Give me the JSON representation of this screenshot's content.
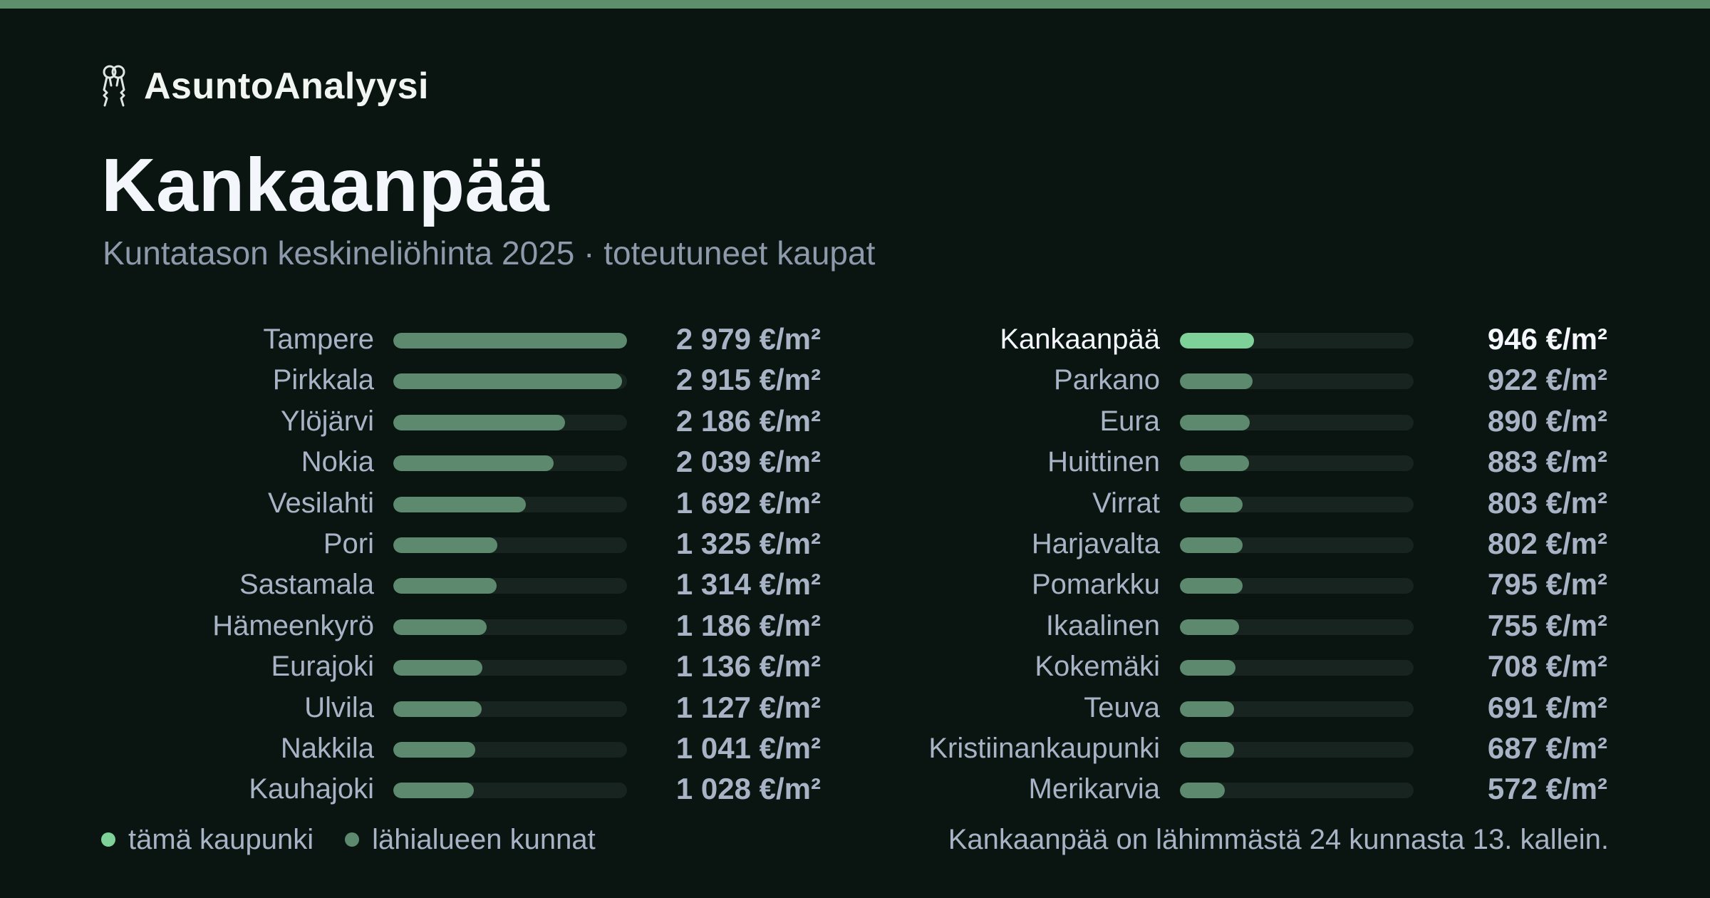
{
  "brand": {
    "name": "AsuntoAnalyysi",
    "icon": "keys-icon"
  },
  "colors": {
    "accent_bar": "#5d8f6a",
    "highlight": "#7fd19a",
    "bar": "#5d8a6e",
    "track": "#17241f"
  },
  "chart_data": {
    "type": "bar",
    "orientation": "horizontal",
    "title": "Kankaanpää",
    "subtitle": "Kuntatason keskineliöhinta 2025 · toteutuneet kaupat",
    "unit": "€/m²",
    "xlim": [
      0,
      2979
    ],
    "highlight": "Kankaanpää",
    "columns": [
      [
        {
          "name": "Tampere",
          "value": 2979,
          "label": "2 979 €/m²"
        },
        {
          "name": "Pirkkala",
          "value": 2915,
          "label": "2 915 €/m²"
        },
        {
          "name": "Ylöjärvi",
          "value": 2186,
          "label": "2 186 €/m²"
        },
        {
          "name": "Nokia",
          "value": 2039,
          "label": "2 039 €/m²"
        },
        {
          "name": "Vesilahti",
          "value": 1692,
          "label": "1 692 €/m²"
        },
        {
          "name": "Pori",
          "value": 1325,
          "label": "1 325 €/m²"
        },
        {
          "name": "Sastamala",
          "value": 1314,
          "label": "1 314 €/m²"
        },
        {
          "name": "Hämeenkyrö",
          "value": 1186,
          "label": "1 186 €/m²"
        },
        {
          "name": "Eurajoki",
          "value": 1136,
          "label": "1 136 €/m²"
        },
        {
          "name": "Ulvila",
          "value": 1127,
          "label": "1 127 €/m²"
        },
        {
          "name": "Nakkila",
          "value": 1041,
          "label": "1 041 €/m²"
        },
        {
          "name": "Kauhajoki",
          "value": 1028,
          "label": "1 028 €/m²"
        }
      ],
      [
        {
          "name": "Kankaanpää",
          "value": 946,
          "label": "946 €/m²"
        },
        {
          "name": "Parkano",
          "value": 922,
          "label": "922 €/m²"
        },
        {
          "name": "Eura",
          "value": 890,
          "label": "890 €/m²"
        },
        {
          "name": "Huittinen",
          "value": 883,
          "label": "883 €/m²"
        },
        {
          "name": "Virrat",
          "value": 803,
          "label": "803 €/m²"
        },
        {
          "name": "Harjavalta",
          "value": 802,
          "label": "802 €/m²"
        },
        {
          "name": "Pomarkku",
          "value": 795,
          "label": "795 €/m²"
        },
        {
          "name": "Ikaalinen",
          "value": 755,
          "label": "755 €/m²"
        },
        {
          "name": "Kokemäki",
          "value": 708,
          "label": "708 €/m²"
        },
        {
          "name": "Teuva",
          "value": 691,
          "label": "691 €/m²"
        },
        {
          "name": "Kristiinankaupunki",
          "value": 687,
          "label": "687 €/m²"
        },
        {
          "name": "Merikarvia",
          "value": 572,
          "label": "572 €/m²"
        }
      ]
    ],
    "legend": [
      {
        "label": "tämä kaupunki",
        "color": "#7fd19a"
      },
      {
        "label": "lähialueen kunnat",
        "color": "#5d8a6e"
      }
    ],
    "annotation": "Kankaanpää on lähimmästä 24 kunnasta 13. kallein."
  }
}
